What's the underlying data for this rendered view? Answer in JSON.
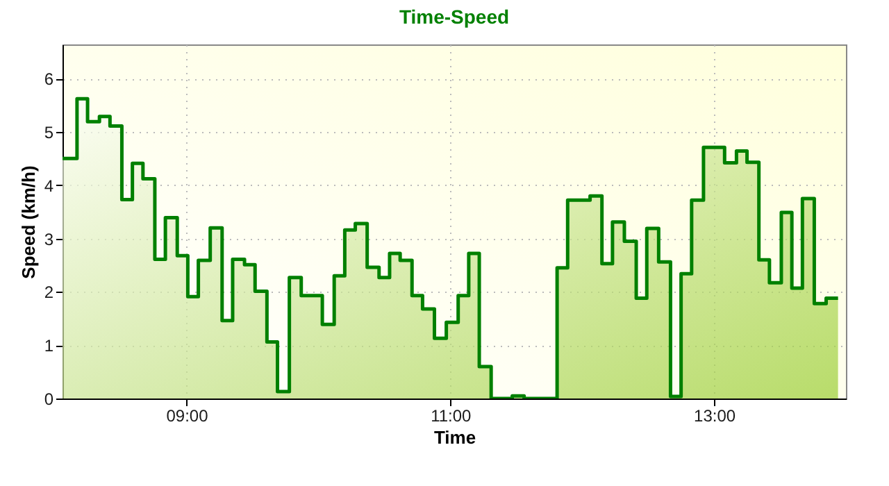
{
  "chart_data": {
    "type": "step",
    "title": "Time-Speed",
    "xlabel": "Time",
    "ylabel": "Speed (km/h)",
    "x": [
      8.06,
      8.17,
      8.25,
      8.34,
      8.42,
      8.51,
      8.59,
      8.67,
      8.76,
      8.84,
      8.93,
      9.01,
      9.09,
      9.18,
      9.27,
      9.35,
      9.44,
      9.52,
      9.61,
      9.69,
      9.78,
      9.87,
      10.03,
      10.12,
      10.2,
      10.28,
      10.37,
      10.46,
      10.54,
      10.62,
      10.71,
      10.79,
      10.88,
      10.97,
      11.06,
      11.14,
      11.22,
      11.31,
      11.47,
      11.56,
      11.81,
      11.89,
      12.06,
      12.15,
      12.23,
      12.32,
      12.41,
      12.49,
      12.58,
      12.67,
      12.75,
      12.83,
      12.92,
      13.08,
      13.17,
      13.25,
      13.34,
      13.42,
      13.51,
      13.59,
      13.67,
      13.76,
      13.85,
      13.94
    ],
    "series": [
      {
        "color": "#008000",
        "values": [
          4.5,
          5.62,
          5.19,
          5.29,
          5.11,
          3.73,
          4.41,
          4.12,
          2.61,
          3.39,
          2.68,
          1.91,
          2.59,
          3.2,
          1.46,
          2.61,
          2.51,
          2.01,
          1.06,
          0.13,
          2.27,
          1.93,
          1.39,
          2.3,
          3.16,
          3.28,
          2.46,
          2.27,
          2.72,
          2.59,
          1.93,
          1.68,
          1.13,
          1.43,
          1.93,
          2.72,
          0.6,
          0,
          0.05,
          0,
          2.45,
          3.72,
          3.8,
          2.53,
          3.31,
          2.95,
          1.88,
          3.19,
          2.56,
          0.04,
          2.34,
          3.72,
          4.71,
          4.42,
          4.64,
          4.43,
          2.6,
          2.17,
          3.49,
          2.07,
          3.75,
          1.78,
          1.88,
          1.88
        ]
      }
    ],
    "xlim": [
      8.06,
      14
    ],
    "xticks": [
      {
        "value": 9,
        "label": "09:00"
      },
      {
        "value": 11,
        "label": "11:00"
      },
      {
        "value": 13,
        "label": "13:00"
      }
    ],
    "ylim": [
      0,
      6.64
    ],
    "yticks": [
      0,
      1,
      2,
      3,
      4,
      5,
      6
    ],
    "grid": true
  }
}
